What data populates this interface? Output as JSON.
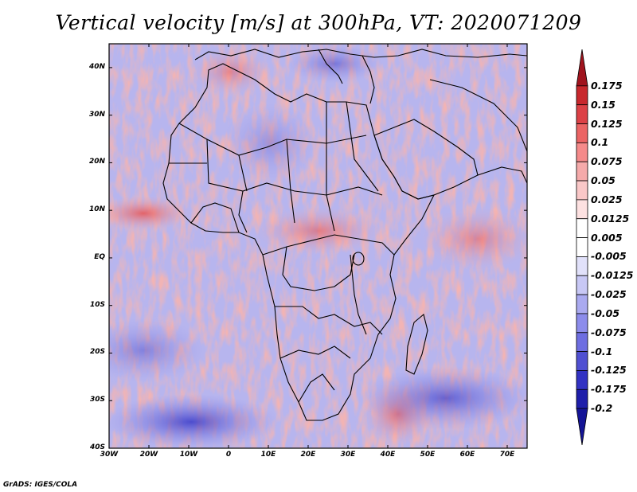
{
  "title": "Vertical velocity [m/s] at 300hPa, VT: 2020071209",
  "credit": "GrADS: IGES/COLA",
  "map": {
    "lon_range": [
      -30,
      75
    ],
    "lat_range": [
      -40,
      45
    ],
    "lon_ticks": [
      {
        "value": -30,
        "label": "30W"
      },
      {
        "value": -20,
        "label": "20W"
      },
      {
        "value": -10,
        "label": "10W"
      },
      {
        "value": 0,
        "label": "0"
      },
      {
        "value": 10,
        "label": "10E"
      },
      {
        "value": 20,
        "label": "20E"
      },
      {
        "value": 30,
        "label": "30E"
      },
      {
        "value": 40,
        "label": "40E"
      },
      {
        "value": 50,
        "label": "50E"
      },
      {
        "value": 60,
        "label": "60E"
      },
      {
        "value": 70,
        "label": "70E"
      }
    ],
    "lat_ticks": [
      {
        "value": 40,
        "label": "40N"
      },
      {
        "value": 30,
        "label": "30N"
      },
      {
        "value": 20,
        "label": "20N"
      },
      {
        "value": 10,
        "label": "10N"
      },
      {
        "value": 0,
        "label": "EQ"
      },
      {
        "value": -10,
        "label": "10S"
      },
      {
        "value": -20,
        "label": "20S"
      },
      {
        "value": -30,
        "label": "30S"
      },
      {
        "value": -40,
        "label": "40S"
      }
    ]
  },
  "colorbar": {
    "labels": [
      "0.175",
      "0.15",
      "0.125",
      "0.1",
      "0.075",
      "0.05",
      "0.025",
      "0.0125",
      "0.005",
      "-0.005",
      "-0.0125",
      "-0.025",
      "-0.05",
      "-0.075",
      "-0.1",
      "-0.125",
      "-0.175",
      "-0.2"
    ],
    "colors": [
      "#a0141e",
      "#c8282d",
      "#dc4146",
      "#eb6464",
      "#f58a8a",
      "#f5aaaa",
      "#fac8c8",
      "#fde1e1",
      "#ffffff",
      "#ffffff",
      "#e1e1fa",
      "#c8c8f5",
      "#aaaaf0",
      "#8c8ceb",
      "#6e6ee1",
      "#5050d2",
      "#3232c3",
      "#1e1eaa",
      "#141496"
    ]
  }
}
